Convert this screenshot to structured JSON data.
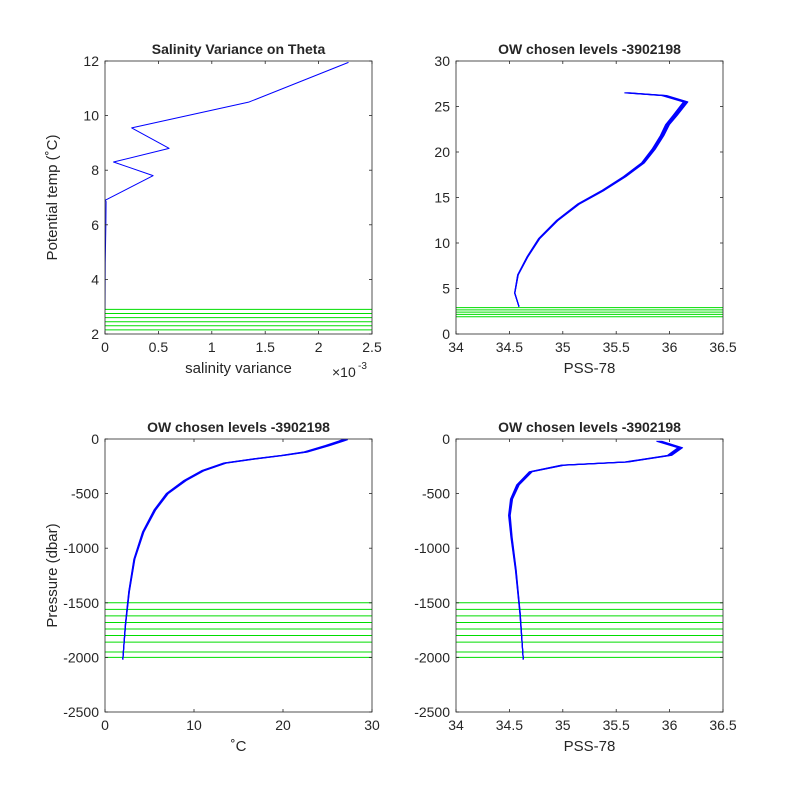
{
  "chart_data": [
    {
      "type": "line",
      "title": "Salinity Variance on Theta",
      "xlabel": "salinity variance",
      "ylabel": "Potential temp (˚C)",
      "x_exponent_label": "×10",
      "x_exponent": "-3",
      "xlim": [
        0,
        0.0025
      ],
      "ylim": [
        2,
        12
      ],
      "xticks": [
        0,
        0.0005,
        0.001,
        0.0015,
        0.002,
        0.0025
      ],
      "xtick_labels": [
        "0",
        "0.5",
        "1",
        "1.5",
        "2",
        "2.5"
      ],
      "yticks": [
        2,
        4,
        6,
        8,
        10,
        12
      ],
      "ytick_labels": [
        "2",
        "4",
        "6",
        "8",
        "10",
        "12"
      ],
      "series": [
        {
          "color": "#0000ff",
          "x": [
            0,
            2e-06,
            8e-06,
            1e-05,
            3e-06,
            0.00045,
            8e-05,
            0.0006,
            0.00025,
            0.00135,
            0.00228
          ],
          "y": [
            2.9,
            4.6,
            6.0,
            6.85,
            6.9,
            7.8,
            8.3,
            8.8,
            9.55,
            10.5,
            11.95
          ]
        }
      ],
      "hlines": {
        "color": "#00dd00",
        "y": [
          2.15,
          2.3,
          2.45,
          2.6,
          2.75,
          2.9
        ]
      }
    },
    {
      "type": "line",
      "title": "OW chosen levels -3902198",
      "xlabel": "PSS-78",
      "ylabel": "",
      "xlim": [
        34,
        36.5
      ],
      "ylim": [
        0,
        30
      ],
      "xticks": [
        34,
        34.5,
        35,
        35.5,
        36,
        36.5
      ],
      "xtick_labels": [
        "34",
        "34.5",
        "35",
        "35.5",
        "36",
        "36.5"
      ],
      "yticks": [
        0,
        5,
        10,
        15,
        20,
        25,
        30
      ],
      "ytick_labels": [
        "0",
        "5",
        "10",
        "15",
        "20",
        "25",
        "30"
      ],
      "series": [
        {
          "color": "#0000ff",
          "x": [
            34.59,
            34.55,
            34.58,
            34.67,
            34.78,
            34.95,
            35.15,
            35.38,
            35.58,
            35.75,
            35.85,
            35.93,
            35.98,
            36.05,
            36.15,
            35.95,
            35.6
          ],
          "y": [
            3.0,
            4.5,
            6.5,
            8.5,
            10.5,
            12.5,
            14.3,
            15.8,
            17.3,
            18.8,
            20.3,
            21.8,
            23.0,
            24.0,
            25.5,
            26.2,
            26.5
          ]
        }
      ],
      "hlines": {
        "color": "#00dd00",
        "y": [
          1.9,
          2.15,
          2.4,
          2.65,
          2.9
        ]
      }
    },
    {
      "type": "line",
      "title": "OW chosen levels -3902198",
      "xlabel": "˚C",
      "ylabel": "Pressure (dbar)",
      "xlim": [
        0,
        30
      ],
      "ylim": [
        -2500,
        0
      ],
      "xticks": [
        0,
        10,
        20,
        30
      ],
      "xtick_labels": [
        "0",
        "10",
        "20",
        "30"
      ],
      "yticks": [
        -2500,
        -2000,
        -1500,
        -1000,
        -500,
        0
      ],
      "ytick_labels": [
        "-2500",
        "-2000",
        "-1500",
        "-1000",
        "-500",
        "0"
      ],
      "series": [
        {
          "color": "#0000ff",
          "x": [
            2.0,
            2.3,
            2.7,
            3.3,
            4.3,
            5.6,
            7.0,
            9.0,
            11.0,
            13.5,
            17.0,
            20.0,
            22.5,
            25.0,
            26.5,
            27.0
          ],
          "y": [
            -2020,
            -1700,
            -1400,
            -1100,
            -850,
            -650,
            -500,
            -380,
            -290,
            -220,
            -180,
            -150,
            -120,
            -60,
            -20,
            -5
          ]
        }
      ],
      "hlines": {
        "color": "#00dd00",
        "y": [
          -1500,
          -1560,
          -1620,
          -1680,
          -1740,
          -1800,
          -1860,
          -1950,
          -2000
        ]
      }
    },
    {
      "type": "line",
      "title": "OW chosen levels -3902198",
      "xlabel": "PSS-78",
      "ylabel": "",
      "xlim": [
        34,
        36.5
      ],
      "ylim": [
        -2500,
        0
      ],
      "xticks": [
        34,
        34.5,
        35,
        35.5,
        36,
        36.5
      ],
      "xtick_labels": [
        "34",
        "34.5",
        "35",
        "35.5",
        "36",
        "36.5"
      ],
      "yticks": [
        -2500,
        -2000,
        -1500,
        -1000,
        -500,
        0
      ],
      "ytick_labels": [
        "-2500",
        "-2000",
        "-1500",
        "-1000",
        "-500",
        "0"
      ],
      "series": [
        {
          "color": "#0000ff",
          "x": [
            34.63,
            34.6,
            34.56,
            34.52,
            34.5,
            34.52,
            34.58,
            34.7,
            35.0,
            35.6,
            36.0,
            36.1,
            35.9
          ],
          "y": [
            -2020,
            -1600,
            -1200,
            -900,
            -700,
            -550,
            -420,
            -300,
            -240,
            -210,
            -150,
            -80,
            -20
          ]
        }
      ],
      "hlines": {
        "color": "#00dd00",
        "y": [
          -1500,
          -1560,
          -1620,
          -1680,
          -1740,
          -1800,
          -1860,
          -1950,
          -2000
        ]
      }
    }
  ]
}
